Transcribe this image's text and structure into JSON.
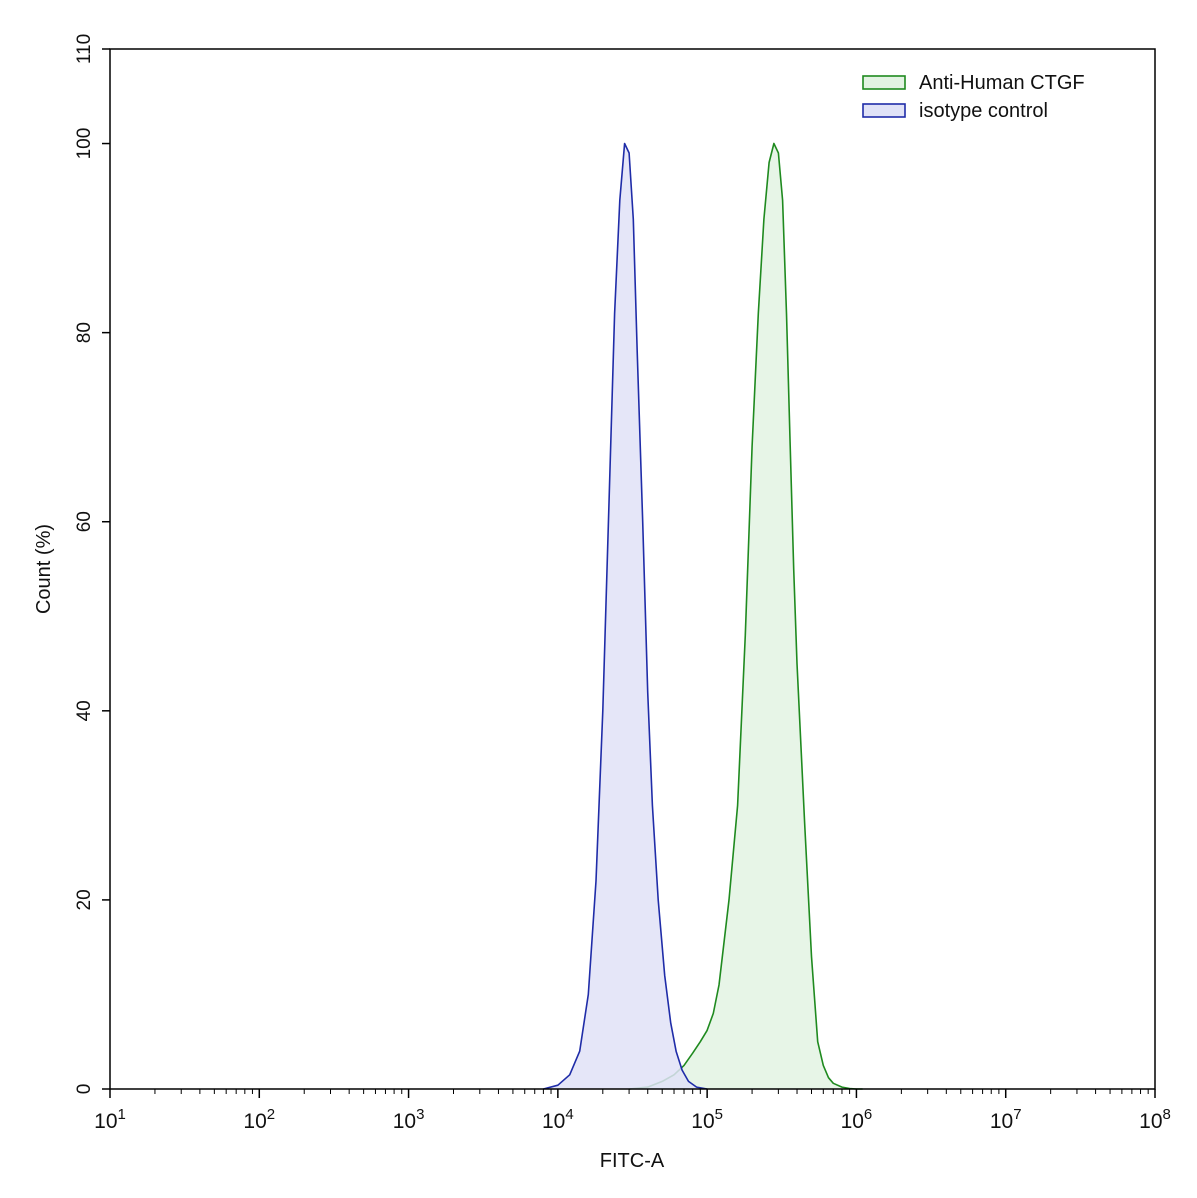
{
  "chart_data": {
    "type": "area",
    "title": "",
    "xlabel": "FITC-A",
    "ylabel": "Count  (%)",
    "xscale": "log",
    "xlim": [
      10,
      100000000
    ],
    "ylim": [
      0,
      110
    ],
    "x_ticks": [
      {
        "value": 10,
        "base": "10",
        "exp": "1"
      },
      {
        "value": 100,
        "base": "10",
        "exp": "2"
      },
      {
        "value": 1000,
        "base": "10",
        "exp": "3"
      },
      {
        "value": 10000,
        "base": "10",
        "exp": "4"
      },
      {
        "value": 100000,
        "base": "10",
        "exp": "5"
      },
      {
        "value": 1000000,
        "base": "10",
        "exp": "6"
      },
      {
        "value": 10000000,
        "base": "10",
        "exp": "7"
      },
      {
        "value": 100000000,
        "base": "10",
        "exp": "8"
      }
    ],
    "y_ticks": [
      {
        "value": 0,
        "label": "0"
      },
      {
        "value": 20,
        "label": "20"
      },
      {
        "value": 40,
        "label": "40"
      },
      {
        "value": 60,
        "label": "60"
      },
      {
        "value": 80,
        "label": "80"
      },
      {
        "value": 100,
        "label": "100"
      },
      {
        "value": 110,
        "label": "110"
      }
    ],
    "legend_position": "top-right",
    "grid": false,
    "series": [
      {
        "name": "Anti-Human CTGF",
        "line_color": "#1f8a1f",
        "fill_color": "#e3f3e3",
        "x": [
          30000,
          40000,
          50000,
          60000,
          70000,
          80000,
          90000,
          100000,
          110000,
          120000,
          140000,
          160000,
          180000,
          200000,
          220000,
          240000,
          260000,
          280000,
          300000,
          320000,
          340000,
          360000,
          380000,
          400000,
          450000,
          500000,
          550000,
          600000,
          650000,
          700000,
          800000,
          900000,
          1000000,
          1100000
        ],
        "y": [
          0,
          0.2,
          0.8,
          1.5,
          2.5,
          3.8,
          5,
          6.2,
          8,
          11,
          20,
          30,
          48,
          68,
          82,
          92,
          98,
          100,
          99,
          94,
          82,
          68,
          55,
          45,
          28,
          14,
          5,
          2.5,
          1.2,
          0.6,
          0.2,
          0.05,
          0,
          0
        ]
      },
      {
        "name": "isotype control",
        "line_color": "#1f2ca8",
        "fill_color": "#e0e2f7",
        "x": [
          8000,
          10000,
          12000,
          14000,
          16000,
          18000,
          20000,
          22000,
          24000,
          26000,
          28000,
          30000,
          32000,
          34000,
          37000,
          40000,
          43000,
          47000,
          52000,
          57000,
          62000,
          68000,
          75000,
          85000,
          100000
        ],
        "y": [
          0,
          0.4,
          1.5,
          4,
          10,
          22,
          40,
          62,
          82,
          94,
          100,
          99,
          92,
          78,
          60,
          42,
          30,
          20,
          12,
          7,
          4,
          2,
          0.8,
          0.2,
          0
        ]
      }
    ]
  }
}
